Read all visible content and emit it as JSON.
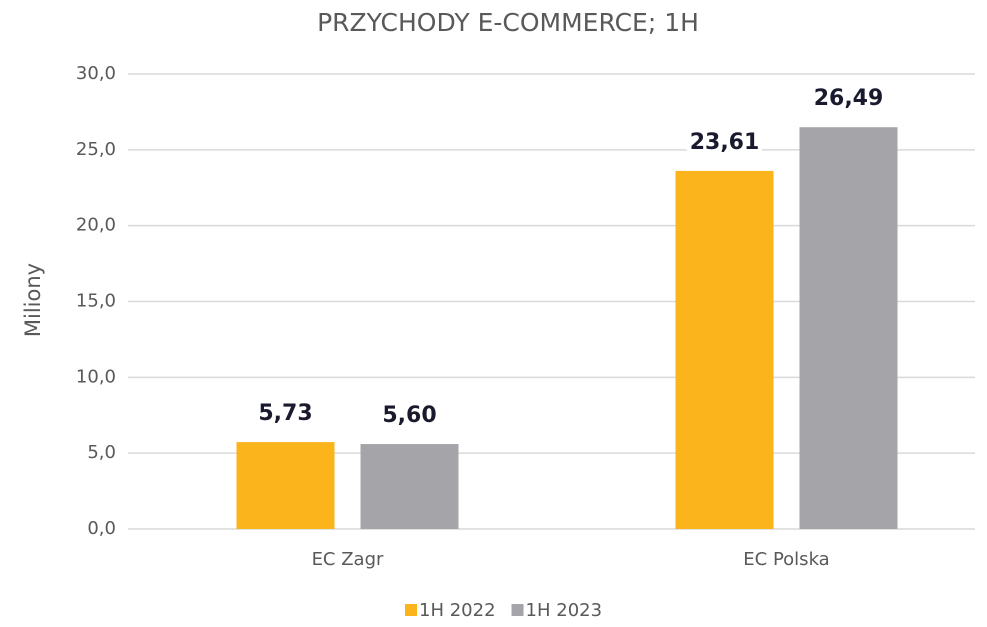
{
  "chart_data": {
    "type": "bar",
    "title": "PRZYCHODY E-COMMERCE; 1H",
    "y_label": "Miliony",
    "categories": [
      "EC Zagr",
      "EC Polska"
    ],
    "series": [
      {
        "name": "1H 2022",
        "color": "#fbb41c",
        "values": [
          5.73,
          23.61
        ],
        "value_labels": [
          "5,73",
          "23,61"
        ]
      },
      {
        "name": "1H 2023",
        "color": "#a5a5a9",
        "values": [
          5.6,
          26.49
        ],
        "value_labels": [
          "5,60",
          "26,49"
        ]
      }
    ],
    "ylim": [
      0,
      30
    ],
    "yticks": [
      {
        "value": 0,
        "label": "0,0"
      },
      {
        "value": 5,
        "label": "5,0"
      },
      {
        "value": 10,
        "label": "10,0"
      },
      {
        "value": 15,
        "label": "15,0"
      },
      {
        "value": 20,
        "label": "20,0"
      },
      {
        "value": 25,
        "label": "25,0"
      },
      {
        "value": 30,
        "label": "30,0"
      }
    ],
    "grid": true,
    "legend": "bottom"
  }
}
